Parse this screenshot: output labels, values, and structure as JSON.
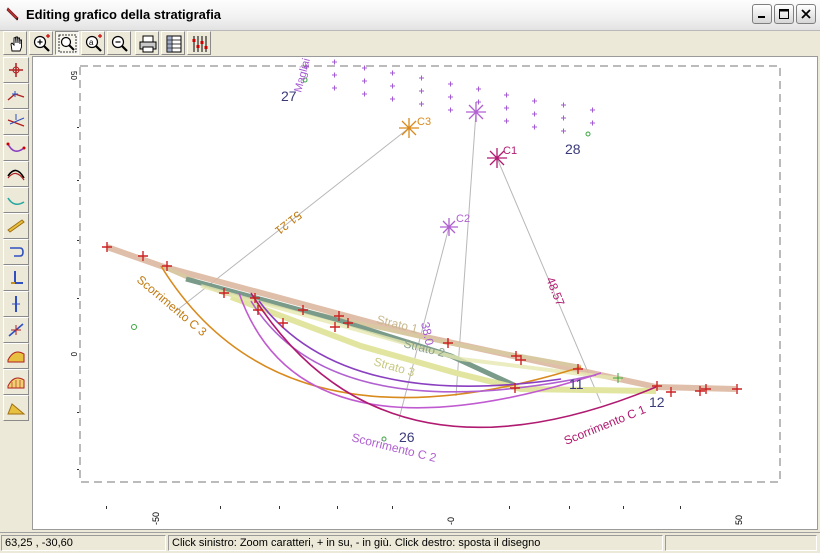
{
  "window": {
    "title": "Editing grafico della stratigrafia"
  },
  "toolbar_top": [
    {
      "name": "pan-tool",
      "icon": "hand-icon"
    },
    {
      "name": "zoom-in-tool",
      "icon": "zoom-plus-icon"
    },
    {
      "name": "zoom-window-tool",
      "icon": "zoom-window-icon"
    },
    {
      "name": "zoom-text-tool",
      "icon": "zoom-text-icon"
    },
    {
      "name": "zoom-out-tool",
      "icon": "zoom-minus-icon"
    },
    {
      "name": "print-tool",
      "icon": "printer-icon"
    },
    {
      "name": "export-tool",
      "icon": "sheet-icon"
    },
    {
      "name": "settings-tool",
      "icon": "sliders-icon"
    }
  ],
  "toolbar_left": [
    "add-point-tool",
    "polyline-tool",
    "split-tool",
    "surface-tool",
    "layer-tool",
    "curve-tool",
    "fill-tool",
    "anchor-tool",
    "load-tool",
    "vertical-tool",
    "diagonal-tool",
    "hatch-tool",
    "grid-tool",
    "wedge-tool"
  ],
  "drawing": {
    "ylabels": [
      "50",
      "0",
      "-50"
    ],
    "ylabels_detail": "",
    "xlabels": [
      "-50",
      "-0",
      "0",
      "50",
      "50"
    ],
    "labels": {
      "magliai": "Magliai",
      "n27": "27",
      "n28": "28",
      "n26": "26",
      "n11": "11",
      "n12": "12",
      "c1": "C1",
      "c2": "C2",
      "c3": "C3",
      "dist1": "51.21",
      "dist2": "48.57",
      "dist3": "38.0",
      "strato1": "Strato 1",
      "strato2": "Strato 2",
      "strato3": "Strato 3",
      "scorr_c3": "Scorrimento C 3",
      "scorr_c2": "Scorrimento C 2",
      "scorr_c1": "Scorrimento C 1"
    }
  },
  "status": {
    "coords": "63,25 , -30,60",
    "hint": "Click sinistro: Zoom caratteri, + in su, - in giù. Click destro: sposta il disegno"
  },
  "colors": {
    "orange": "#d98a1c",
    "purple": "#a45ad0",
    "magenta": "#b01a70",
    "violet": "#8a3fc0",
    "red": "#cc2222",
    "terrain": "#d8b8a0",
    "strato1": "#d9c9a3",
    "strato2": "#7a9a8a",
    "strato3": "#e2e5a0"
  }
}
